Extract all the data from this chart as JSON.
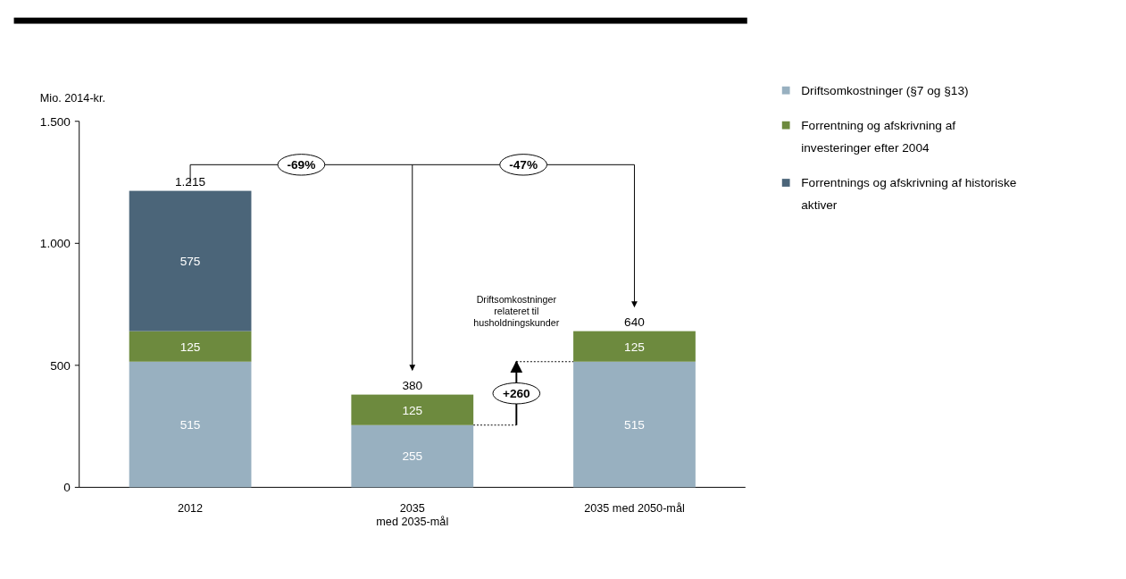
{
  "chart_data": {
    "type": "bar",
    "stacked": true,
    "ylabel": "Mio. 2014-kr.",
    "categories": [
      "2012",
      "2035\nmed 2035-mål",
      "2035 med 2050-mål"
    ],
    "series": [
      {
        "name": "Driftsomkostninger (§7 og §13)",
        "color": "#98b0c0",
        "values": [
          515,
          255,
          515
        ]
      },
      {
        "name": "Forrentning og afskrivning af investeringer efter 2004",
        "color": "#6d8a3e",
        "values": [
          125,
          125,
          125
        ]
      },
      {
        "name": "Forrentnings og afskrivning af historiske aktiver",
        "color": "#4b6579",
        "values": [
          575,
          null,
          null
        ]
      }
    ],
    "ylim": [
      0,
      1500
    ],
    "yticks": [
      {
        "value": 0,
        "label": "0"
      },
      {
        "value": 500,
        "label": "500"
      },
      {
        "value": 1000,
        "label": "1.000"
      },
      {
        "value": 1500,
        "label": "1.500"
      }
    ],
    "data_labels": true,
    "totals": [
      "1.215",
      "380",
      "640"
    ],
    "legend": "right",
    "grid": false,
    "annotations": [
      "-69%",
      "-47%",
      "+260",
      "Driftsomkostninger relateret til husholdningskunder"
    ]
  }
}
